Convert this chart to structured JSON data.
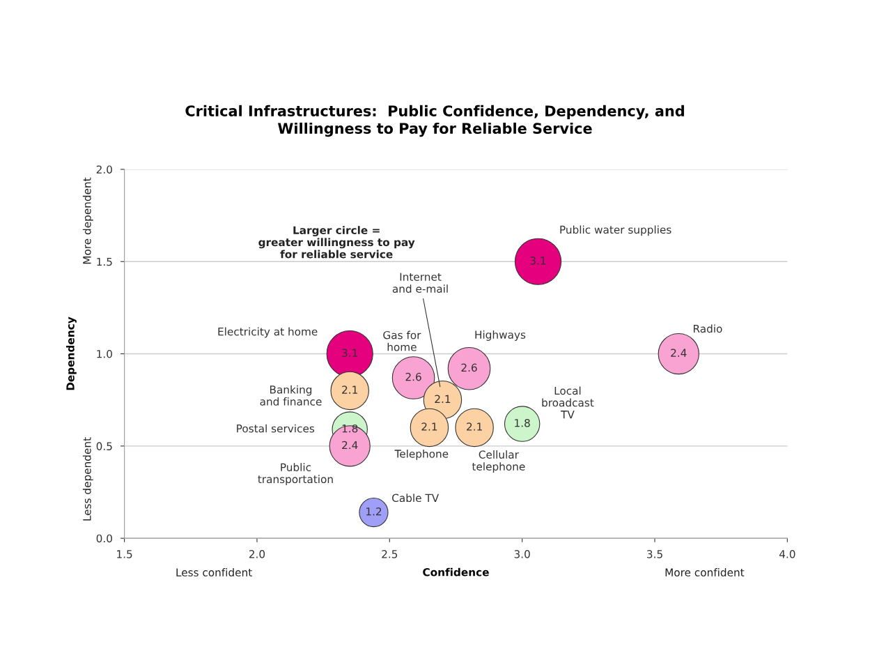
{
  "chart_data": {
    "type": "bubble",
    "title": "Critical Infrastructures:  Public Confidence, Dependency, and\nWillingness to Pay for Reliable Service",
    "xlabel": "Confidence",
    "ylabel": "Dependency",
    "xlim": [
      1.5,
      4.0
    ],
    "ylim": [
      0.0,
      2.0
    ],
    "xticks": [
      {
        "value": 1.5,
        "label": "1.5"
      },
      {
        "value": 2.0,
        "label": "2.0"
      },
      {
        "value": 2.5,
        "label": "2.5"
      },
      {
        "value": 3.0,
        "label": "3.0"
      },
      {
        "value": 3.5,
        "label": "3.5"
      },
      {
        "value": 4.0,
        "label": "4.0"
      }
    ],
    "yticks": [
      {
        "value": 0.0,
        "label": "0.0"
      },
      {
        "value": 0.5,
        "label": "0.5"
      },
      {
        "value": 1.0,
        "label": "1.0"
      },
      {
        "value": 1.5,
        "label": "1.5"
      },
      {
        "value": 2.0,
        "label": "2.0"
      }
    ],
    "grid": "y",
    "legend": false,
    "annotations": [
      "Larger circle =\ngreater willingness to pay\nfor reliable service",
      "Less confident",
      "More confident",
      "Less dependent",
      "More dependent"
    ],
    "series": [
      {
        "name": "Public water supplies",
        "color": "#e5007e",
        "x": [
          3.06
        ],
        "values": [
          1.5
        ],
        "sizes": [
          3.1
        ],
        "value_labels": [
          "3.1"
        ]
      },
      {
        "name": "Electricity at home",
        "color": "#e5007e",
        "x": [
          2.35
        ],
        "values": [
          1.0
        ],
        "sizes": [
          3.1
        ],
        "value_labels": [
          "3.1"
        ]
      },
      {
        "name": "Radio",
        "color": "#f9a3d3",
        "x": [
          3.59
        ],
        "values": [
          1.0
        ],
        "sizes": [
          2.4
        ],
        "value_labels": [
          "2.4"
        ]
      },
      {
        "name": "Gas for\nhome",
        "color": "#f9a3d3",
        "x": [
          2.59
        ],
        "values": [
          0.87
        ],
        "sizes": [
          2.6
        ],
        "value_labels": [
          "2.6"
        ]
      },
      {
        "name": "Highways",
        "color": "#f9a3d3",
        "x": [
          2.8
        ],
        "values": [
          0.92
        ],
        "sizes": [
          2.6
        ],
        "value_labels": [
          "2.6"
        ]
      },
      {
        "name": "Banking\nand finance",
        "color": "#fcd2a4",
        "x": [
          2.35
        ],
        "values": [
          0.8
        ],
        "sizes": [
          2.1
        ],
        "value_labels": [
          "2.1"
        ]
      },
      {
        "name": "Internet\nand e-mail",
        "color": "#fcd2a4",
        "x": [
          2.7
        ],
        "values": [
          0.75
        ],
        "sizes": [
          2.1
        ],
        "value_labels": [
          "2.1"
        ]
      },
      {
        "name": "Telephone",
        "color": "#fcd2a4",
        "x": [
          2.65
        ],
        "values": [
          0.6
        ],
        "sizes": [
          2.1
        ],
        "value_labels": [
          "2.1"
        ]
      },
      {
        "name": "Cellular\ntelephone",
        "color": "#fcd2a4",
        "x": [
          2.82
        ],
        "values": [
          0.6
        ],
        "sizes": [
          2.1
        ],
        "value_labels": [
          "2.1"
        ]
      },
      {
        "name": "Local\nbroadcast\nTV",
        "color": "#ccf5cc",
        "x": [
          3.0
        ],
        "values": [
          0.62
        ],
        "sizes": [
          1.8
        ],
        "value_labels": [
          "1.8"
        ]
      },
      {
        "name": "Postal services",
        "color": "#ccf5cc",
        "x": [
          2.35
        ],
        "values": [
          0.59
        ],
        "sizes": [
          1.8
        ],
        "value_labels": [
          "1.8"
        ]
      },
      {
        "name": "Public\ntransportation",
        "color": "#f9a3d3",
        "x": [
          2.35
        ],
        "values": [
          0.5
        ],
        "sizes": [
          2.4
        ],
        "value_labels": [
          "2.4"
        ]
      },
      {
        "name": "Cable TV",
        "color": "#9f9ff7",
        "x": [
          2.44
        ],
        "values": [
          0.14
        ],
        "sizes": [
          1.2
        ],
        "value_labels": [
          "1.2"
        ]
      }
    ]
  }
}
